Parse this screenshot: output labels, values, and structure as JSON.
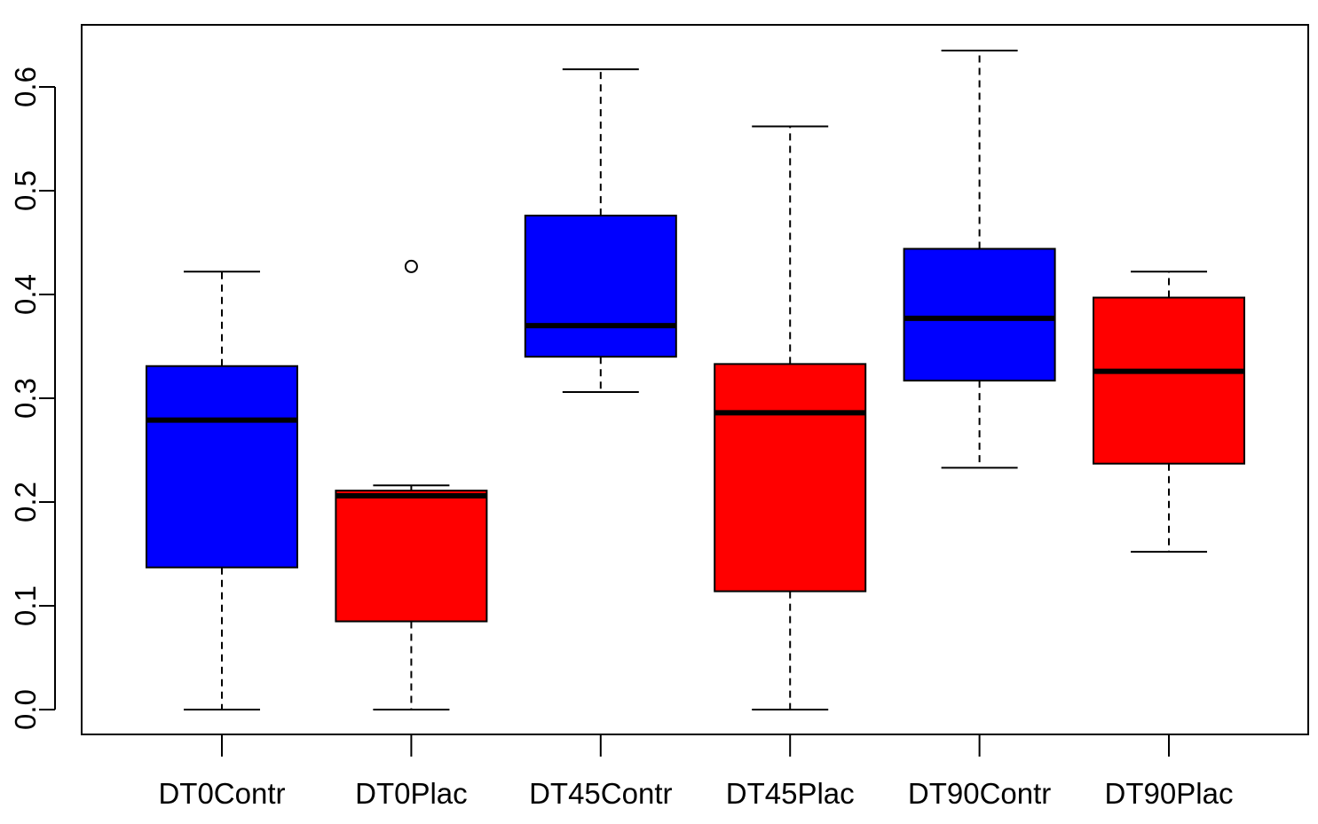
{
  "chart_data": {
    "type": "boxplot",
    "title": "",
    "xlabel": "",
    "ylabel": "",
    "ylim": [
      -0.025,
      0.66
    ],
    "yticks": [
      0.0,
      0.1,
      0.2,
      0.3,
      0.4,
      0.5,
      0.6
    ],
    "ytick_labels": [
      "0.0",
      "0.1",
      "0.2",
      "0.3",
      "0.4",
      "0.5",
      "0.6"
    ],
    "categories": [
      "DT0Contr",
      "DT0Plac",
      "DT45Contr",
      "DT45Plac",
      "DT90Contr",
      "DT90Plac"
    ],
    "boxes": [
      {
        "name": "DT0Contr",
        "color": "#0000ff",
        "whisker_low": 0.0,
        "q1": 0.137,
        "median": 0.279,
        "q3": 0.331,
        "whisker_high": 0.422,
        "outliers": []
      },
      {
        "name": "DT0Plac",
        "color": "#ff0000",
        "whisker_low": 0.0,
        "q1": 0.085,
        "median": 0.206,
        "q3": 0.211,
        "whisker_high": 0.216,
        "outliers": [
          0.427
        ]
      },
      {
        "name": "DT45Contr",
        "color": "#0000ff",
        "whisker_low": 0.306,
        "q1": 0.34,
        "median": 0.37,
        "q3": 0.476,
        "whisker_high": 0.617,
        "outliers": []
      },
      {
        "name": "DT45Plac",
        "color": "#ff0000",
        "whisker_low": 0.0,
        "q1": 0.114,
        "median": 0.286,
        "q3": 0.333,
        "whisker_high": 0.562,
        "outliers": []
      },
      {
        "name": "DT90Contr",
        "color": "#0000ff",
        "whisker_low": 0.233,
        "q1": 0.317,
        "median": 0.377,
        "q3": 0.444,
        "whisker_high": 0.635,
        "outliers": []
      },
      {
        "name": "DT90Plac",
        "color": "#ff0000",
        "whisker_low": 0.152,
        "q1": 0.237,
        "median": 0.326,
        "q3": 0.397,
        "whisker_high": 0.422,
        "outliers": []
      }
    ]
  }
}
